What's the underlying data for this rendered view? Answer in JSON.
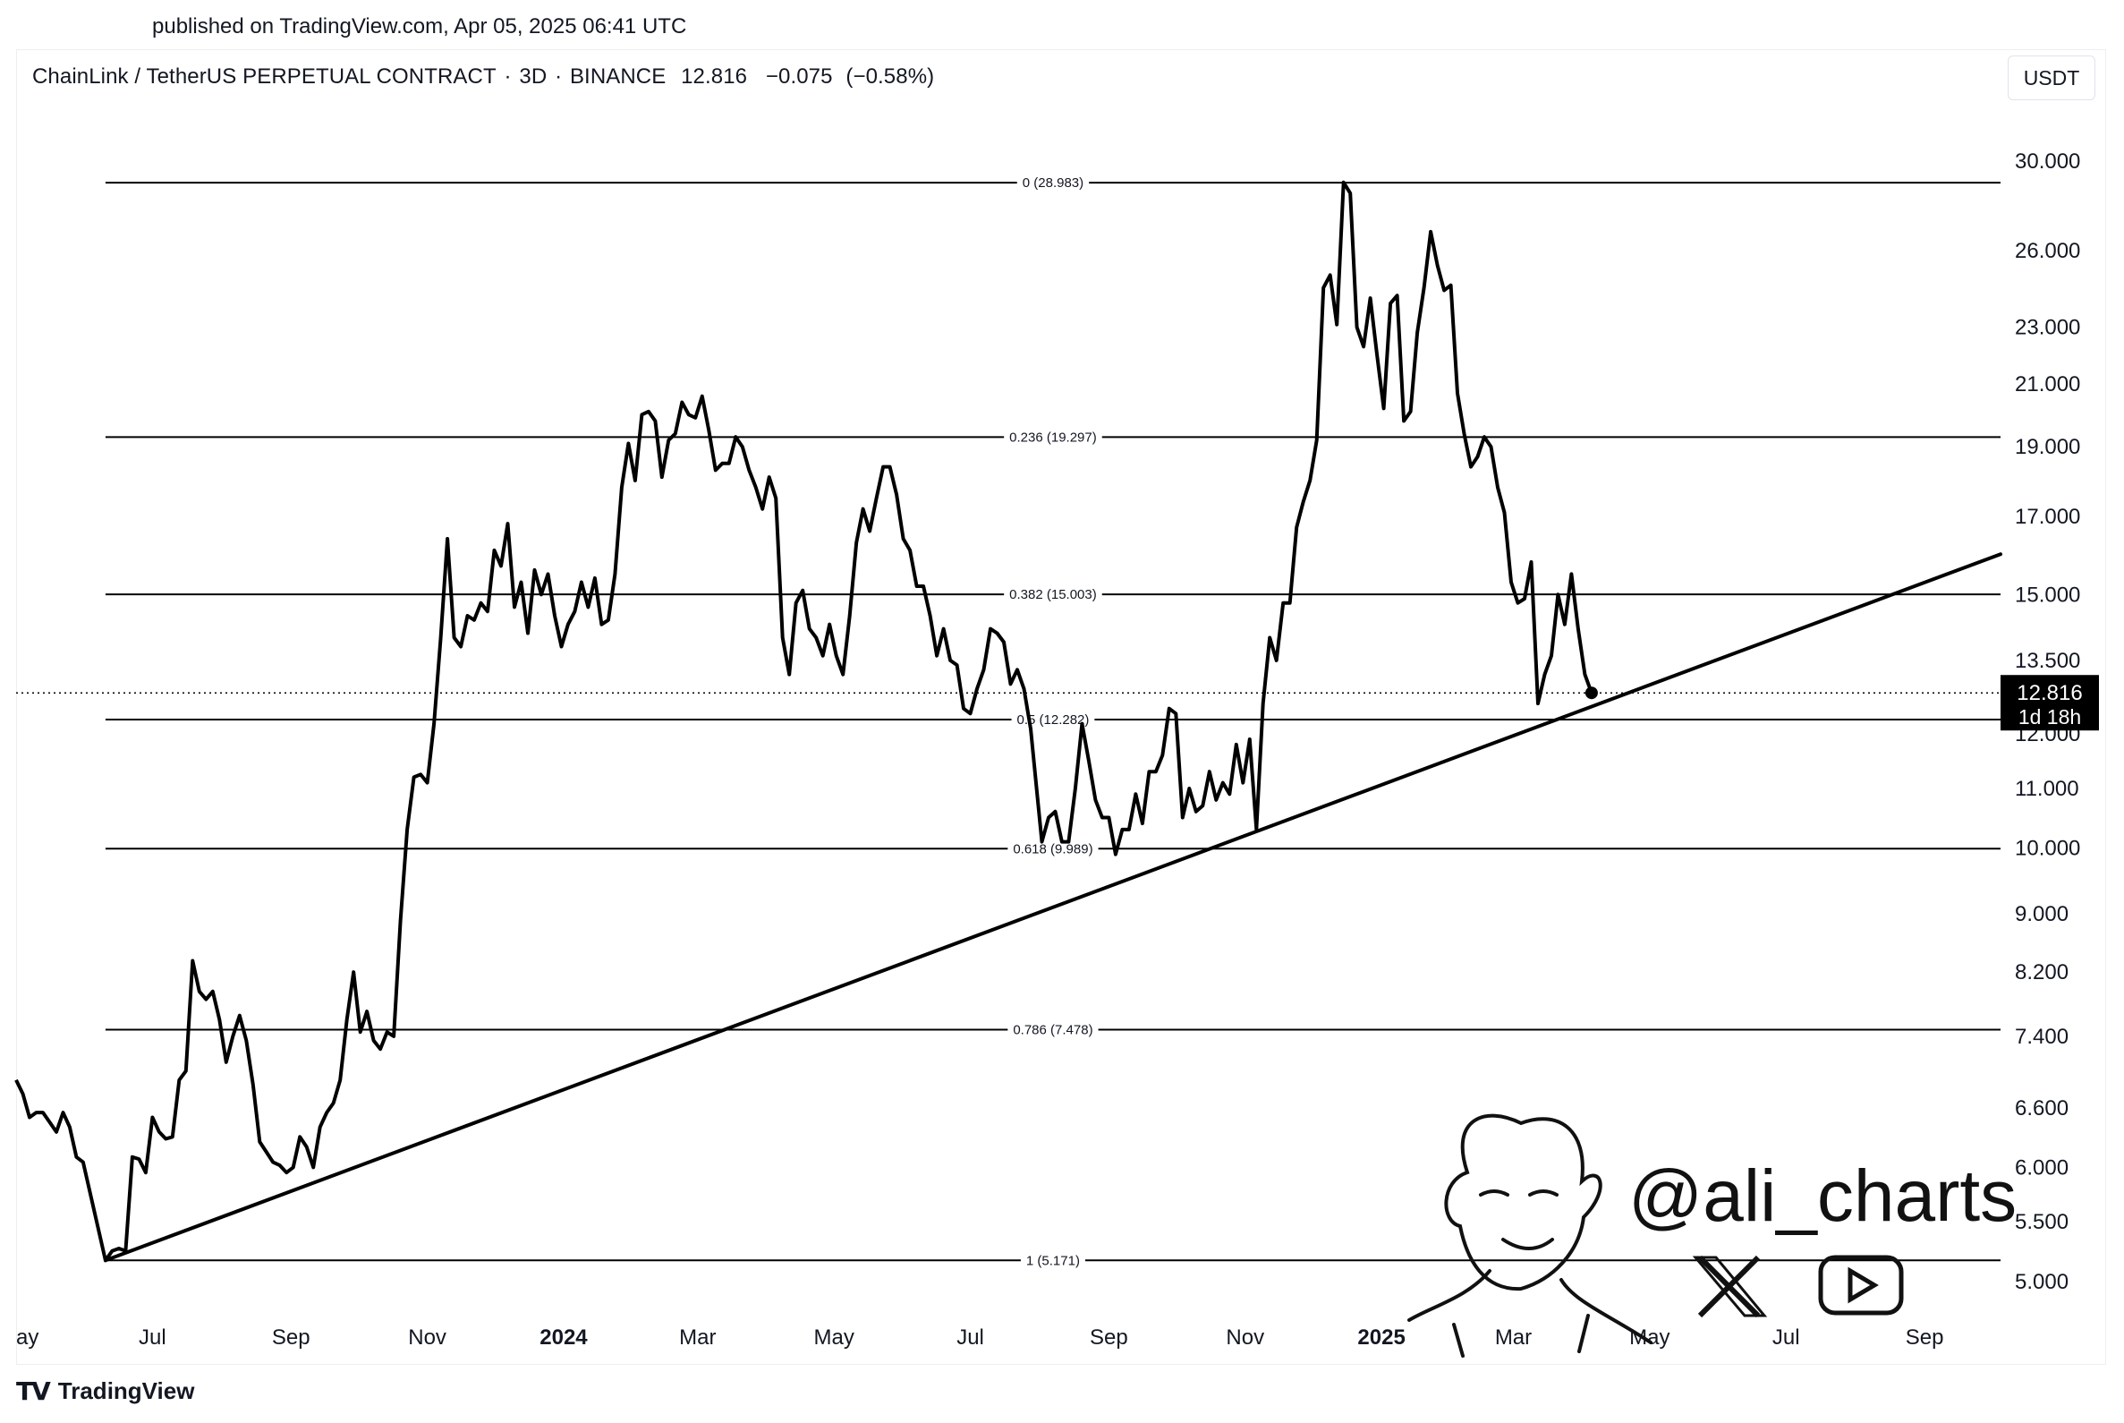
{
  "published": "published on TradingView.com, Apr 05, 2025 06:41 UTC",
  "header": {
    "symbol": "ChainLink / TetherUS PERPETUAL CONTRACT",
    "interval": "3D",
    "exchange": "BINANCE",
    "price": "12.816",
    "change": "−0.075",
    "change_pct": "(−0.58%)"
  },
  "currency": "USDT",
  "last_price_tag": {
    "price": "12.816",
    "countdown": "1d 18h"
  },
  "watermark": "@ali_charts",
  "footer": {
    "brand": "TradingView"
  },
  "colors": {
    "line": "#000000",
    "background": "#ffffff",
    "text": "#131722"
  },
  "icons": [
    "x-logo-icon",
    "youtube-icon",
    "avatar-sketch",
    "tradingview-logo-icon"
  ],
  "chart_data": {
    "type": "line",
    "scale": "log",
    "ylim": [
      4.6,
      32
    ],
    "xlim": [
      "2023-05-01",
      "2025-10-05"
    ],
    "grid": false,
    "y_ticks": [
      "30.000",
      "26.000",
      "23.000",
      "21.000",
      "19.000",
      "17.000",
      "15.000",
      "13.500",
      "12.000",
      "11.000",
      "10.000",
      "9.000",
      "8.200",
      "7.400",
      "6.600",
      "6.000",
      "5.500",
      "5.000"
    ],
    "x_ticks": [
      {
        "label": "ay",
        "date": "2023-05-01"
      },
      {
        "label": "Jul",
        "date": "2023-07-01"
      },
      {
        "label": "Sep",
        "date": "2023-09-01"
      },
      {
        "label": "Nov",
        "date": "2023-11-01"
      },
      {
        "label": "2024",
        "date": "2024-01-01",
        "bold": true
      },
      {
        "label": "Mar",
        "date": "2024-03-01"
      },
      {
        "label": "May",
        "date": "2024-05-01"
      },
      {
        "label": "Jul",
        "date": "2024-07-01"
      },
      {
        "label": "Sep",
        "date": "2024-09-01"
      },
      {
        "label": "Nov",
        "date": "2024-11-01"
      },
      {
        "label": "2025",
        "date": "2025-01-01",
        "bold": true
      },
      {
        "label": "Mar",
        "date": "2025-03-01"
      },
      {
        "label": "May",
        "date": "2025-05-01"
      },
      {
        "label": "Jul",
        "date": "2025-07-01"
      },
      {
        "label": "Sep",
        "date": "2025-09-01"
      }
    ],
    "fib_levels": [
      {
        "label": "0 (28.983)",
        "value": 28.983
      },
      {
        "label": "0.236 (19.297)",
        "value": 19.297
      },
      {
        "label": "0.382 (15.003)",
        "value": 15.003
      },
      {
        "label": "0.5 (12.282)",
        "value": 12.282
      },
      {
        "label": "0.618 (9.989)",
        "value": 9.989
      },
      {
        "label": "0.786 (7.478)",
        "value": 7.478
      },
      {
        "label": "1 (5.171)",
        "value": 5.171
      }
    ],
    "fib_start": "2023-06-10",
    "fib_end": "2025-04-05",
    "trendline": [
      {
        "x": "2023-06-10",
        "y": 5.171
      },
      {
        "x": "2025-10-05",
        "y": 16.0
      }
    ],
    "last": {
      "x": "2025-04-05",
      "y": 12.816
    },
    "series": [
      {
        "values": [
          [
            "2023-05-01",
            6.9
          ],
          [
            "2023-05-04",
            6.75
          ],
          [
            "2023-05-07",
            6.5
          ],
          [
            "2023-05-10",
            6.55
          ],
          [
            "2023-05-13",
            6.55
          ],
          [
            "2023-05-16",
            6.45
          ],
          [
            "2023-05-19",
            6.35
          ],
          [
            "2023-05-22",
            6.55
          ],
          [
            "2023-05-25",
            6.4
          ],
          [
            "2023-05-28",
            6.1
          ],
          [
            "2023-05-31",
            6.05
          ],
          [
            "2023-06-10",
            5.171
          ],
          [
            "2023-06-13",
            5.25
          ],
          [
            "2023-06-16",
            5.27
          ],
          [
            "2023-06-19",
            5.25
          ],
          [
            "2023-06-22",
            6.1
          ],
          [
            "2023-06-25",
            6.08
          ],
          [
            "2023-06-28",
            5.95
          ],
          [
            "2023-07-01",
            6.5
          ],
          [
            "2023-07-04",
            6.35
          ],
          [
            "2023-07-07",
            6.28
          ],
          [
            "2023-07-10",
            6.3
          ],
          [
            "2023-07-13",
            6.9
          ],
          [
            "2023-07-16",
            7.0
          ],
          [
            "2023-07-19",
            8.35
          ],
          [
            "2023-07-22",
            7.95
          ],
          [
            "2023-07-25",
            7.85
          ],
          [
            "2023-07-28",
            7.95
          ],
          [
            "2023-07-31",
            7.6
          ],
          [
            "2023-08-03",
            7.1
          ],
          [
            "2023-08-06",
            7.4
          ],
          [
            "2023-08-09",
            7.65
          ],
          [
            "2023-08-12",
            7.35
          ],
          [
            "2023-08-15",
            6.85
          ],
          [
            "2023-08-18",
            6.25
          ],
          [
            "2023-08-21",
            6.15
          ],
          [
            "2023-08-24",
            6.05
          ],
          [
            "2023-08-27",
            6.02
          ],
          [
            "2023-08-30",
            5.95
          ],
          [
            "2023-09-02",
            6.0
          ],
          [
            "2023-09-05",
            6.3
          ],
          [
            "2023-09-08",
            6.2
          ],
          [
            "2023-09-11",
            6.0
          ],
          [
            "2023-09-14",
            6.4
          ],
          [
            "2023-09-17",
            6.55
          ],
          [
            "2023-09-20",
            6.65
          ],
          [
            "2023-09-23",
            6.9
          ],
          [
            "2023-09-26",
            7.6
          ],
          [
            "2023-09-29",
            8.2
          ],
          [
            "2023-10-02",
            7.45
          ],
          [
            "2023-10-05",
            7.7
          ],
          [
            "2023-10-08",
            7.35
          ],
          [
            "2023-10-11",
            7.25
          ],
          [
            "2023-10-14",
            7.45
          ],
          [
            "2023-10-17",
            7.4
          ],
          [
            "2023-10-20",
            8.9
          ],
          [
            "2023-10-23",
            10.3
          ],
          [
            "2023-10-26",
            11.2
          ],
          [
            "2023-10-29",
            11.25
          ],
          [
            "2023-11-01",
            11.1
          ],
          [
            "2023-11-04",
            12.2
          ],
          [
            "2023-11-07",
            14.0
          ],
          [
            "2023-11-10",
            16.4
          ],
          [
            "2023-11-13",
            14.0
          ],
          [
            "2023-11-16",
            13.8
          ],
          [
            "2023-11-19",
            14.5
          ],
          [
            "2023-11-22",
            14.4
          ],
          [
            "2023-11-25",
            14.8
          ],
          [
            "2023-11-28",
            14.6
          ],
          [
            "2023-12-01",
            16.1
          ],
          [
            "2023-12-04",
            15.7
          ],
          [
            "2023-12-07",
            16.8
          ],
          [
            "2023-12-10",
            14.7
          ],
          [
            "2023-12-13",
            15.3
          ],
          [
            "2023-12-16",
            14.1
          ],
          [
            "2023-12-19",
            15.6
          ],
          [
            "2023-12-22",
            15.0
          ],
          [
            "2023-12-25",
            15.5
          ],
          [
            "2023-12-28",
            14.5
          ],
          [
            "2023-12-31",
            13.8
          ],
          [
            "2024-01-03",
            14.3
          ],
          [
            "2024-01-06",
            14.6
          ],
          [
            "2024-01-09",
            15.3
          ],
          [
            "2024-01-12",
            14.7
          ],
          [
            "2024-01-15",
            15.4
          ],
          [
            "2024-01-18",
            14.3
          ],
          [
            "2024-01-21",
            14.4
          ],
          [
            "2024-01-24",
            15.5
          ],
          [
            "2024-01-27",
            17.8
          ],
          [
            "2024-01-30",
            19.1
          ],
          [
            "2024-02-02",
            18.0
          ],
          [
            "2024-02-05",
            20.0
          ],
          [
            "2024-02-08",
            20.1
          ],
          [
            "2024-02-11",
            19.8
          ],
          [
            "2024-02-14",
            18.1
          ],
          [
            "2024-02-17",
            19.2
          ],
          [
            "2024-02-20",
            19.4
          ],
          [
            "2024-02-23",
            20.4
          ],
          [
            "2024-02-26",
            20.0
          ],
          [
            "2024-02-29",
            19.9
          ],
          [
            "2024-03-03",
            20.6
          ],
          [
            "2024-03-06",
            19.5
          ],
          [
            "2024-03-09",
            18.3
          ],
          [
            "2024-03-12",
            18.5
          ],
          [
            "2024-03-15",
            18.5
          ],
          [
            "2024-03-18",
            19.3
          ],
          [
            "2024-03-21",
            19.0
          ],
          [
            "2024-03-24",
            18.3
          ],
          [
            "2024-03-27",
            17.8
          ],
          [
            "2024-03-30",
            17.2
          ],
          [
            "2024-04-02",
            18.1
          ],
          [
            "2024-04-05",
            17.5
          ],
          [
            "2024-04-08",
            14.0
          ],
          [
            "2024-04-11",
            13.2
          ],
          [
            "2024-04-14",
            14.8
          ],
          [
            "2024-04-17",
            15.1
          ],
          [
            "2024-04-20",
            14.2
          ],
          [
            "2024-04-23",
            14.0
          ],
          [
            "2024-04-26",
            13.6
          ],
          [
            "2024-04-29",
            14.3
          ],
          [
            "2024-05-02",
            13.6
          ],
          [
            "2024-05-05",
            13.2
          ],
          [
            "2024-05-08",
            14.5
          ],
          [
            "2024-05-11",
            16.3
          ],
          [
            "2024-05-14",
            17.2
          ],
          [
            "2024-05-17",
            16.6
          ],
          [
            "2024-05-20",
            17.5
          ],
          [
            "2024-05-23",
            18.4
          ],
          [
            "2024-05-26",
            18.4
          ],
          [
            "2024-05-29",
            17.6
          ],
          [
            "2024-06-01",
            16.4
          ],
          [
            "2024-06-04",
            16.1
          ],
          [
            "2024-06-07",
            15.2
          ],
          [
            "2024-06-10",
            15.2
          ],
          [
            "2024-06-13",
            14.5
          ],
          [
            "2024-06-16",
            13.6
          ],
          [
            "2024-06-19",
            14.2
          ],
          [
            "2024-06-22",
            13.5
          ],
          [
            "2024-06-25",
            13.4
          ],
          [
            "2024-06-28",
            12.5
          ],
          [
            "2024-07-01",
            12.4
          ],
          [
            "2024-07-04",
            12.9
          ],
          [
            "2024-07-07",
            13.3
          ],
          [
            "2024-07-10",
            14.2
          ],
          [
            "2024-07-13",
            14.1
          ],
          [
            "2024-07-16",
            13.9
          ],
          [
            "2024-07-19",
            13.0
          ],
          [
            "2024-07-22",
            13.3
          ],
          [
            "2024-07-25",
            12.9
          ],
          [
            "2024-07-28",
            12.1
          ],
          [
            "2024-08-02",
            10.1
          ],
          [
            "2024-08-05",
            10.5
          ],
          [
            "2024-08-08",
            10.6
          ],
          [
            "2024-08-11",
            10.1
          ],
          [
            "2024-08-14",
            10.1
          ],
          [
            "2024-08-17",
            11.0
          ],
          [
            "2024-08-20",
            12.2
          ],
          [
            "2024-08-23",
            11.5
          ],
          [
            "2024-08-26",
            10.8
          ],
          [
            "2024-08-29",
            10.5
          ],
          [
            "2024-09-01",
            10.5
          ],
          [
            "2024-09-04",
            9.9
          ],
          [
            "2024-09-07",
            10.3
          ],
          [
            "2024-09-10",
            10.3
          ],
          [
            "2024-09-13",
            10.9
          ],
          [
            "2024-09-16",
            10.4
          ],
          [
            "2024-09-19",
            11.3
          ],
          [
            "2024-09-22",
            11.3
          ],
          [
            "2024-09-25",
            11.6
          ],
          [
            "2024-09-28",
            12.5
          ],
          [
            "2024-10-01",
            12.4
          ],
          [
            "2024-10-04",
            10.5
          ],
          [
            "2024-10-07",
            11.0
          ],
          [
            "2024-10-10",
            10.6
          ],
          [
            "2024-10-13",
            10.7
          ],
          [
            "2024-10-16",
            11.3
          ],
          [
            "2024-10-19",
            10.8
          ],
          [
            "2024-10-22",
            11.1
          ],
          [
            "2024-10-25",
            10.9
          ],
          [
            "2024-10-28",
            11.8
          ],
          [
            "2024-10-31",
            11.1
          ],
          [
            "2024-11-03",
            11.9
          ],
          [
            "2024-11-06",
            10.3
          ],
          [
            "2024-11-09",
            12.6
          ],
          [
            "2024-11-12",
            14.0
          ],
          [
            "2024-11-15",
            13.5
          ],
          [
            "2024-11-18",
            14.8
          ],
          [
            "2024-11-21",
            14.8
          ],
          [
            "2024-11-24",
            16.7
          ],
          [
            "2024-11-27",
            17.4
          ],
          [
            "2024-11-30",
            18.0
          ],
          [
            "2024-12-03",
            19.2
          ],
          [
            "2024-12-06",
            24.5
          ],
          [
            "2024-12-09",
            25.0
          ],
          [
            "2024-12-12",
            23.1
          ],
          [
            "2024-12-15",
            29.0
          ],
          [
            "2024-12-18",
            28.5
          ],
          [
            "2024-12-21",
            23.0
          ],
          [
            "2024-12-24",
            22.3
          ],
          [
            "2024-12-27",
            24.1
          ],
          [
            "2024-12-30",
            22.0
          ],
          [
            "2025-01-02",
            20.2
          ],
          [
            "2025-01-05",
            23.9
          ],
          [
            "2025-01-08",
            24.2
          ],
          [
            "2025-01-11",
            19.8
          ],
          [
            "2025-01-14",
            20.1
          ],
          [
            "2025-01-17",
            22.8
          ],
          [
            "2025-01-20",
            24.5
          ],
          [
            "2025-01-23",
            26.8
          ],
          [
            "2025-01-26",
            25.4
          ],
          [
            "2025-01-29",
            24.4
          ],
          [
            "2025-02-01",
            24.6
          ],
          [
            "2025-02-04",
            20.7
          ],
          [
            "2025-02-07",
            19.4
          ],
          [
            "2025-02-10",
            18.4
          ],
          [
            "2025-02-13",
            18.7
          ],
          [
            "2025-02-16",
            19.3
          ],
          [
            "2025-02-19",
            19.0
          ],
          [
            "2025-02-22",
            17.8
          ],
          [
            "2025-02-25",
            17.1
          ],
          [
            "2025-02-28",
            15.3
          ],
          [
            "2025-03-03",
            14.8
          ],
          [
            "2025-03-06",
            14.9
          ],
          [
            "2025-03-09",
            15.8
          ],
          [
            "2025-03-12",
            12.6
          ],
          [
            "2025-03-15",
            13.2
          ],
          [
            "2025-03-18",
            13.6
          ],
          [
            "2025-03-21",
            15.0
          ],
          [
            "2025-03-24",
            14.3
          ],
          [
            "2025-03-27",
            15.5
          ],
          [
            "2025-03-30",
            14.2
          ],
          [
            "2025-04-02",
            13.2
          ],
          [
            "2025-04-05",
            12.816
          ]
        ]
      }
    ]
  }
}
